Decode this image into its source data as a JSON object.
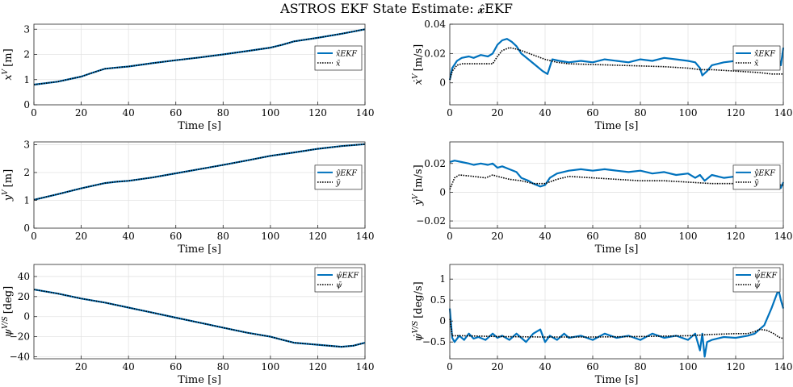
{
  "figure": {
    "title": "ASTROS EKF State Estimate: 𝔁̂EKF"
  },
  "colors": {
    "estimate": "#0072BD",
    "truth": "#000000",
    "grid": "#e3e3e3",
    "axes": "#262626"
  },
  "chart_data": [
    {
      "type": "line",
      "id": "x",
      "xlabel": "Time [s]",
      "ylabel": "x^V [m]",
      "xlim": [
        0,
        140
      ],
      "ylim": [
        0,
        3.2
      ],
      "xticks": [
        0,
        20,
        40,
        60,
        80,
        100,
        120,
        140
      ],
      "yticks": [
        0,
        1,
        2,
        3
      ],
      "grid": true,
      "legend_position": "right",
      "series": [
        {
          "name": "x̂EKF",
          "style": "solid",
          "x": [
            0,
            10,
            20,
            25,
            30,
            35,
            40,
            50,
            60,
            70,
            80,
            90,
            100,
            105,
            110,
            120,
            130,
            140
          ],
          "y": [
            0.8,
            0.92,
            1.12,
            1.28,
            1.43,
            1.48,
            1.52,
            1.65,
            1.77,
            1.88,
            2.0,
            2.13,
            2.27,
            2.38,
            2.52,
            2.66,
            2.82,
            3.0
          ]
        },
        {
          "name": "x̄",
          "style": "dotted",
          "x": [
            0,
            10,
            20,
            25,
            30,
            35,
            40,
            50,
            60,
            70,
            80,
            90,
            100,
            105,
            110,
            120,
            130,
            140
          ],
          "y": [
            0.8,
            0.92,
            1.12,
            1.28,
            1.43,
            1.48,
            1.52,
            1.65,
            1.77,
            1.88,
            2.0,
            2.13,
            2.27,
            2.38,
            2.52,
            2.66,
            2.82,
            3.0
          ]
        }
      ]
    },
    {
      "type": "line",
      "id": "xdot",
      "xlabel": "Time [s]",
      "ylabel": "ẋ^V [m/s]",
      "xlim": [
        0,
        140
      ],
      "ylim": [
        -0.015,
        0.04
      ],
      "xticks": [
        0,
        20,
        40,
        60,
        80,
        100,
        120,
        140
      ],
      "yticks": [
        0,
        0.02,
        0.04
      ],
      "grid": true,
      "legend_position": "right",
      "series": [
        {
          "name": "ẋ̂EKF",
          "style": "solid",
          "x": [
            0,
            1,
            3,
            5,
            8,
            10,
            13,
            16,
            18,
            20,
            22,
            24,
            26,
            28,
            30,
            33,
            36,
            39,
            41,
            43,
            46,
            50,
            55,
            60,
            65,
            70,
            75,
            80,
            85,
            90,
            95,
            100,
            103,
            105,
            106,
            108,
            110,
            115,
            120,
            125,
            130,
            135,
            138,
            139,
            140
          ],
          "y": [
            0.002,
            0.01,
            0.015,
            0.017,
            0.018,
            0.017,
            0.019,
            0.018,
            0.02,
            0.026,
            0.029,
            0.03,
            0.028,
            0.025,
            0.02,
            0.016,
            0.012,
            0.008,
            0.006,
            0.016,
            0.015,
            0.014,
            0.015,
            0.014,
            0.016,
            0.015,
            0.014,
            0.016,
            0.015,
            0.017,
            0.016,
            0.015,
            0.014,
            0.01,
            0.005,
            0.008,
            0.012,
            0.014,
            0.015,
            0.016,
            0.014,
            0.016,
            0.017,
            0.012,
            0.024
          ]
        },
        {
          "name": "ẋ̄",
          "style": "dotted",
          "x": [
            0,
            1,
            3,
            5,
            10,
            15,
            18,
            20,
            22,
            25,
            28,
            30,
            35,
            40,
            45,
            50,
            60,
            70,
            80,
            90,
            100,
            105,
            110,
            120,
            130,
            135,
            140
          ],
          "y": [
            0.002,
            0.008,
            0.012,
            0.013,
            0.013,
            0.013,
            0.013,
            0.018,
            0.022,
            0.024,
            0.023,
            0.022,
            0.019,
            0.016,
            0.014,
            0.013,
            0.0125,
            0.012,
            0.0115,
            0.011,
            0.01,
            0.009,
            0.009,
            0.008,
            0.007,
            0.006,
            0.006
          ]
        }
      ]
    },
    {
      "type": "line",
      "id": "y",
      "xlabel": "Time [s]",
      "ylabel": "y^V [m]",
      "xlim": [
        0,
        140
      ],
      "ylim": [
        0,
        3.1
      ],
      "xticks": [
        0,
        20,
        40,
        60,
        80,
        100,
        120,
        140
      ],
      "yticks": [
        0,
        1,
        2,
        3
      ],
      "grid": true,
      "legend_position": "right",
      "series": [
        {
          "name": "ŷEKF",
          "style": "solid",
          "x": [
            0,
            10,
            20,
            30,
            35,
            40,
            50,
            60,
            70,
            80,
            90,
            100,
            110,
            120,
            130,
            140
          ],
          "y": [
            1.02,
            1.22,
            1.43,
            1.62,
            1.67,
            1.7,
            1.82,
            1.97,
            2.12,
            2.27,
            2.43,
            2.6,
            2.72,
            2.85,
            2.95,
            3.02
          ]
        },
        {
          "name": "ȳ",
          "style": "dotted",
          "x": [
            0,
            10,
            20,
            30,
            35,
            40,
            50,
            60,
            70,
            80,
            90,
            100,
            110,
            120,
            130,
            140
          ],
          "y": [
            1.02,
            1.22,
            1.43,
            1.62,
            1.67,
            1.7,
            1.82,
            1.97,
            2.12,
            2.27,
            2.43,
            2.6,
            2.72,
            2.85,
            2.95,
            3.02
          ]
        }
      ]
    },
    {
      "type": "line",
      "id": "ydot",
      "xlabel": "Time [s]",
      "ylabel": "ẏ^V [m/s]",
      "xlim": [
        0,
        140
      ],
      "ylim": [
        -0.025,
        0.035
      ],
      "xticks": [
        0,
        20,
        40,
        60,
        80,
        100,
        120,
        140
      ],
      "yticks": [
        -0.02,
        0,
        0.02
      ],
      "grid": true,
      "legend_position": "right",
      "series": [
        {
          "name": "ẏ̂EKF",
          "style": "solid",
          "x": [
            0,
            2,
            5,
            8,
            10,
            13,
            16,
            18,
            20,
            22,
            25,
            28,
            30,
            33,
            35,
            38,
            40,
            42,
            45,
            50,
            55,
            60,
            65,
            70,
            75,
            80,
            85,
            90,
            95,
            100,
            103,
            105,
            107,
            110,
            115,
            120,
            125,
            130,
            135,
            137,
            139,
            140
          ],
          "y": [
            0.021,
            0.022,
            0.021,
            0.02,
            0.019,
            0.02,
            0.019,
            0.02,
            0.017,
            0.018,
            0.016,
            0.014,
            0.01,
            0.008,
            0.006,
            0.004,
            0.005,
            0.01,
            0.013,
            0.015,
            0.016,
            0.015,
            0.016,
            0.015,
            0.014,
            0.015,
            0.013,
            0.014,
            0.012,
            0.013,
            0.01,
            0.012,
            0.008,
            0.012,
            0.01,
            0.011,
            0.009,
            0.01,
            0.008,
            0.006,
            0.003,
            0.007
          ]
        },
        {
          "name": "ẏ̄",
          "style": "dotted",
          "x": [
            0,
            2,
            4,
            10,
            15,
            18,
            20,
            25,
            30,
            35,
            40,
            45,
            50,
            60,
            70,
            80,
            90,
            100,
            110,
            120,
            130,
            140
          ],
          "y": [
            0.002,
            0.01,
            0.012,
            0.011,
            0.01,
            0.012,
            0.011,
            0.009,
            0.008,
            0.006,
            0.006,
            0.009,
            0.011,
            0.01,
            0.009,
            0.008,
            0.008,
            0.007,
            0.006,
            0.006,
            0.005,
            0.005
          ]
        }
      ]
    },
    {
      "type": "line",
      "id": "psi",
      "xlabel": "Time [s]",
      "ylabel": "ψ^V/S [deg]",
      "xlim": [
        0,
        140
      ],
      "ylim": [
        -42,
        52
      ],
      "xticks": [
        20,
        40,
        60,
        80,
        100,
        120,
        140
      ],
      "yticks": [
        -40,
        -20,
        0,
        20,
        40
      ],
      "grid": true,
      "legend_position": "top-right",
      "series": [
        {
          "name": "ψ̂EKF",
          "style": "solid",
          "x": [
            0,
            10,
            20,
            30,
            40,
            50,
            60,
            70,
            80,
            90,
            100,
            105,
            110,
            120,
            130,
            135,
            140
          ],
          "y": [
            27,
            23,
            18,
            14,
            9,
            4,
            -1,
            -6,
            -11,
            -16,
            -20,
            -23,
            -26,
            -28,
            -30,
            -29,
            -26
          ]
        },
        {
          "name": "ψ̄",
          "style": "dotted",
          "x": [
            0,
            10,
            20,
            30,
            40,
            50,
            60,
            70,
            80,
            90,
            100,
            105,
            110,
            120,
            130,
            135,
            140
          ],
          "y": [
            27,
            23,
            18,
            14,
            9,
            4,
            -1,
            -6,
            -11,
            -16,
            -20,
            -23,
            -26,
            -28,
            -30,
            -29,
            -26
          ]
        }
      ]
    },
    {
      "type": "line",
      "id": "psidot",
      "xlabel": "Time [s]",
      "ylabel": "ψ̇^V/S [deg/s]",
      "xlim": [
        0,
        140
      ],
      "ylim": [
        -0.9,
        1.35
      ],
      "xticks": [
        0,
        20,
        40,
        60,
        80,
        100,
        120,
        140
      ],
      "yticks": [
        -0.5,
        0,
        0.5,
        1
      ],
      "grid": true,
      "legend_position": "top-right",
      "series": [
        {
          "name": "ψ̇̂EKF",
          "style": "solid",
          "x": [
            0,
            1,
            2,
            4,
            6,
            8,
            10,
            12,
            15,
            18,
            20,
            22,
            25,
            28,
            30,
            32,
            35,
            38,
            40,
            42,
            45,
            48,
            50,
            55,
            60,
            65,
            70,
            75,
            80,
            85,
            90,
            95,
            100,
            103,
            105,
            106,
            107,
            108,
            110,
            115,
            120,
            125,
            128,
            130,
            132,
            135,
            137,
            138,
            139,
            140
          ],
          "y": [
            0.3,
            -0.4,
            -0.5,
            -0.35,
            -0.45,
            -0.3,
            -0.42,
            -0.38,
            -0.45,
            -0.3,
            -0.4,
            -0.35,
            -0.45,
            -0.3,
            -0.4,
            -0.5,
            -0.3,
            -0.2,
            -0.5,
            -0.35,
            -0.45,
            -0.3,
            -0.4,
            -0.35,
            -0.45,
            -0.3,
            -0.4,
            -0.35,
            -0.45,
            -0.3,
            -0.4,
            -0.35,
            -0.45,
            -0.3,
            -0.7,
            -0.3,
            -0.85,
            -0.5,
            -0.45,
            -0.38,
            -0.4,
            -0.35,
            -0.3,
            -0.2,
            -0.1,
            0.3,
            0.6,
            0.75,
            0.5,
            0.3
          ]
        },
        {
          "name": "ψ̇̄",
          "style": "dotted",
          "x": [
            0,
            1,
            5,
            20,
            40,
            60,
            80,
            100,
            110,
            120,
            125,
            128,
            130,
            133,
            136,
            138,
            140
          ],
          "y": [
            0.05,
            -0.35,
            -0.35,
            -0.37,
            -0.38,
            -0.38,
            -0.37,
            -0.35,
            -0.32,
            -0.3,
            -0.3,
            -0.25,
            -0.2,
            -0.22,
            -0.3,
            -0.38,
            -0.42
          ]
        }
      ]
    }
  ]
}
